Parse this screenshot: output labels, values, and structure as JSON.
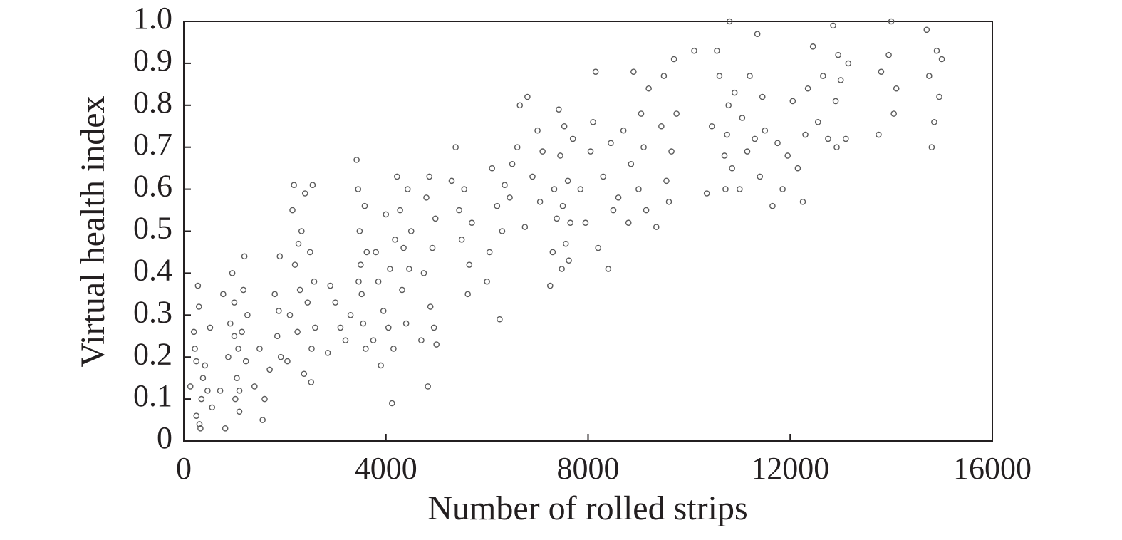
{
  "chart_data": {
    "type": "scatter",
    "x_label": "Number of rolled strips",
    "y_label": "Virtual health index",
    "color": "#5a5a5a",
    "xlim": [
      0,
      16000
    ],
    "xticks": [
      0,
      4000,
      8000,
      12000,
      16000
    ],
    "ylim": [
      0,
      1
    ],
    "yticks": [
      0,
      0.1,
      0.2,
      0.3,
      0.4,
      0.5,
      0.6,
      0.7,
      0.8,
      0.9,
      {
        "value": 1,
        "label": "1.0"
      }
    ],
    "x": [
      130,
      200,
      220,
      250,
      280,
      300,
      310,
      330,
      350,
      380,
      420,
      470,
      520,
      560,
      250,
      720,
      780,
      820,
      880,
      920,
      960,
      1000,
      1020,
      1050,
      1080,
      1100,
      1150,
      1180,
      1200,
      1230,
      1260,
      1000,
      1100,
      1400,
      1500,
      1560,
      1600,
      1700,
      1800,
      1850,
      1900,
      1880,
      1920,
      2050,
      2100,
      2150,
      2180,
      2200,
      2250,
      2300,
      2330,
      2380,
      2400,
      2450,
      2500,
      2520,
      2550,
      2580,
      2600,
      2530,
      2270,
      2850,
      2900,
      3000,
      3100,
      3200,
      3300,
      3420,
      3450,
      3480,
      3500,
      3520,
      3550,
      3580,
      3600,
      3460,
      3620,
      3750,
      3800,
      3850,
      3900,
      3950,
      4000,
      4050,
      4080,
      4120,
      4150,
      4180,
      4220,
      4280,
      4320,
      4350,
      4400,
      4430,
      4460,
      4500,
      4700,
      4750,
      4800,
      4830,
      4860,
      4880,
      4920,
      4950,
      4980,
      5000,
      5300,
      5380,
      5450,
      5500,
      5550,
      5620,
      5650,
      5700,
      6000,
      6050,
      6100,
      6200,
      6250,
      6300,
      6350,
      6450,
      6500,
      6600,
      6650,
      6750,
      6800,
      6900,
      7000,
      7050,
      7100,
      7250,
      7300,
      7330,
      7380,
      7420,
      7450,
      7480,
      7500,
      7530,
      7560,
      7600,
      7650,
      7700,
      7620,
      7850,
      7950,
      8050,
      8100,
      8150,
      8200,
      8300,
      8400,
      8450,
      8500,
      8600,
      8700,
      8800,
      8850,
      8900,
      9000,
      9050,
      9100,
      9150,
      9200,
      9350,
      9450,
      9500,
      9550,
      9600,
      9650,
      9700,
      9750,
      10100,
      10350,
      10450,
      10550,
      10600,
      10700,
      10720,
      10750,
      10780,
      10800,
      10850,
      10900,
      11000,
      11050,
      11150,
      11200,
      11300,
      11350,
      11400,
      11450,
      11500,
      11650,
      11750,
      11850,
      11950,
      12050,
      12150,
      12250,
      12300,
      12350,
      12450,
      12550,
      12650,
      12750,
      12850,
      12900,
      12920,
      12950,
      13000,
      13100,
      13150,
      13750,
      13800,
      13950,
      14000,
      14050,
      14100,
      14700,
      14750,
      14800,
      14850,
      14900,
      14950,
      15000
    ],
    "y": [
      0.13,
      0.26,
      0.22,
      0.06,
      0.37,
      0.32,
      0.04,
      0.03,
      0.1,
      0.15,
      0.18,
      0.12,
      0.27,
      0.08,
      0.19,
      0.12,
      0.35,
      0.03,
      0.2,
      0.28,
      0.4,
      0.33,
      0.1,
      0.15,
      0.22,
      0.07,
      0.26,
      0.36,
      0.44,
      0.19,
      0.3,
      0.25,
      0.12,
      0.13,
      0.22,
      0.05,
      0.1,
      0.17,
      0.35,
      0.25,
      0.44,
      0.31,
      0.2,
      0.19,
      0.3,
      0.55,
      0.61,
      0.42,
      0.26,
      0.36,
      0.5,
      0.16,
      0.59,
      0.33,
      0.45,
      0.14,
      0.61,
      0.38,
      0.27,
      0.22,
      0.47,
      0.21,
      0.37,
      0.33,
      0.27,
      0.24,
      0.3,
      0.67,
      0.6,
      0.5,
      0.42,
      0.35,
      0.28,
      0.56,
      0.22,
      0.38,
      0.45,
      0.24,
      0.45,
      0.38,
      0.18,
      0.31,
      0.54,
      0.27,
      0.41,
      0.09,
      0.22,
      0.48,
      0.63,
      0.55,
      0.36,
      0.46,
      0.28,
      0.6,
      0.41,
      0.5,
      0.24,
      0.4,
      0.58,
      0.13,
      0.63,
      0.32,
      0.46,
      0.27,
      0.53,
      0.23,
      0.62,
      0.7,
      0.55,
      0.48,
      0.6,
      0.35,
      0.42,
      0.52,
      0.38,
      0.45,
      0.65,
      0.56,
      0.29,
      0.5,
      0.61,
      0.58,
      0.66,
      0.7,
      0.8,
      0.51,
      0.82,
      0.63,
      0.74,
      0.57,
      0.69,
      0.37,
      0.45,
      0.6,
      0.53,
      0.79,
      0.68,
      0.41,
      0.56,
      0.75,
      0.47,
      0.62,
      0.52,
      0.72,
      0.43,
      0.6,
      0.52,
      0.69,
      0.76,
      0.88,
      0.46,
      0.63,
      0.41,
      0.71,
      0.55,
      0.58,
      0.74,
      0.52,
      0.66,
      0.88,
      0.6,
      0.78,
      0.7,
      0.55,
      0.84,
      0.51,
      0.75,
      0.87,
      0.62,
      0.57,
      0.69,
      0.91,
      0.78,
      0.93,
      0.59,
      0.75,
      0.93,
      0.87,
      0.68,
      0.6,
      0.73,
      0.8,
      1,
      0.65,
      0.83,
      0.6,
      0.77,
      0.69,
      0.87,
      0.72,
      0.97,
      0.63,
      0.82,
      0.74,
      0.56,
      0.71,
      0.6,
      0.68,
      0.81,
      0.65,
      0.57,
      0.73,
      0.84,
      0.94,
      0.76,
      0.87,
      0.72,
      0.99,
      0.81,
      0.7,
      0.92,
      0.86,
      0.72,
      0.9,
      0.73,
      0.88,
      0.92,
      1,
      0.78,
      0.84,
      0.98,
      0.87,
      0.7,
      0.76,
      0.93,
      0.82,
      0.91
    ]
  }
}
